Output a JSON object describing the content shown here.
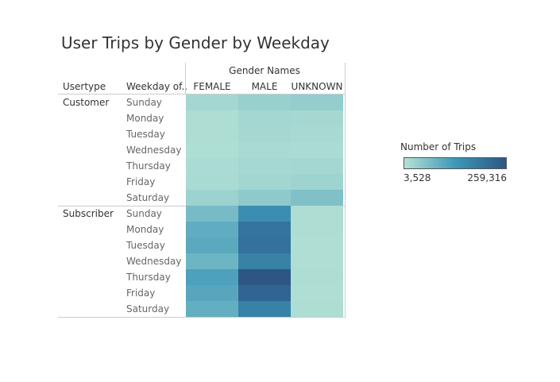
{
  "chart_data": {
    "type": "heatmap",
    "title": "User Trips by Gender by Weekday",
    "column_header_title": "Gender Names",
    "row_header_usertype": "Usertype",
    "row_header_weekday": "Weekday of..",
    "columns": [
      "FEMALE",
      "MALE",
      "UNKNOWN"
    ],
    "usertypes": [
      "Customer",
      "Subscriber"
    ],
    "weekdays": [
      "Sunday",
      "Monday",
      "Tuesday",
      "Wednesday",
      "Thursday",
      "Friday",
      "Saturday"
    ],
    "values": [
      [
        [
          22000,
          35000,
          40000
        ],
        [
          12000,
          22000,
          20000
        ],
        [
          12000,
          20000,
          18000
        ],
        [
          10000,
          16000,
          14000
        ],
        [
          14000,
          20000,
          22000
        ],
        [
          15000,
          24000,
          28000
        ],
        [
          30000,
          45000,
          60000
        ]
      ],
      [
        [
          70000,
          150000,
          12000
        ],
        [
          95000,
          200000,
          11000
        ],
        [
          100000,
          205000,
          10000
        ],
        [
          80000,
          175000,
          10000
        ],
        [
          115000,
          259316,
          11000
        ],
        [
          105000,
          230000,
          10000
        ],
        [
          92000,
          175000,
          12000
        ]
      ]
    ],
    "color_min": "#b5e2d5",
    "color_max": "#2d5685",
    "legend": {
      "title": "Number of Trips",
      "min_label": "3,528",
      "max_label": "259,316",
      "min_value": 3528,
      "max_value": 259316,
      "placement": "right"
    }
  }
}
